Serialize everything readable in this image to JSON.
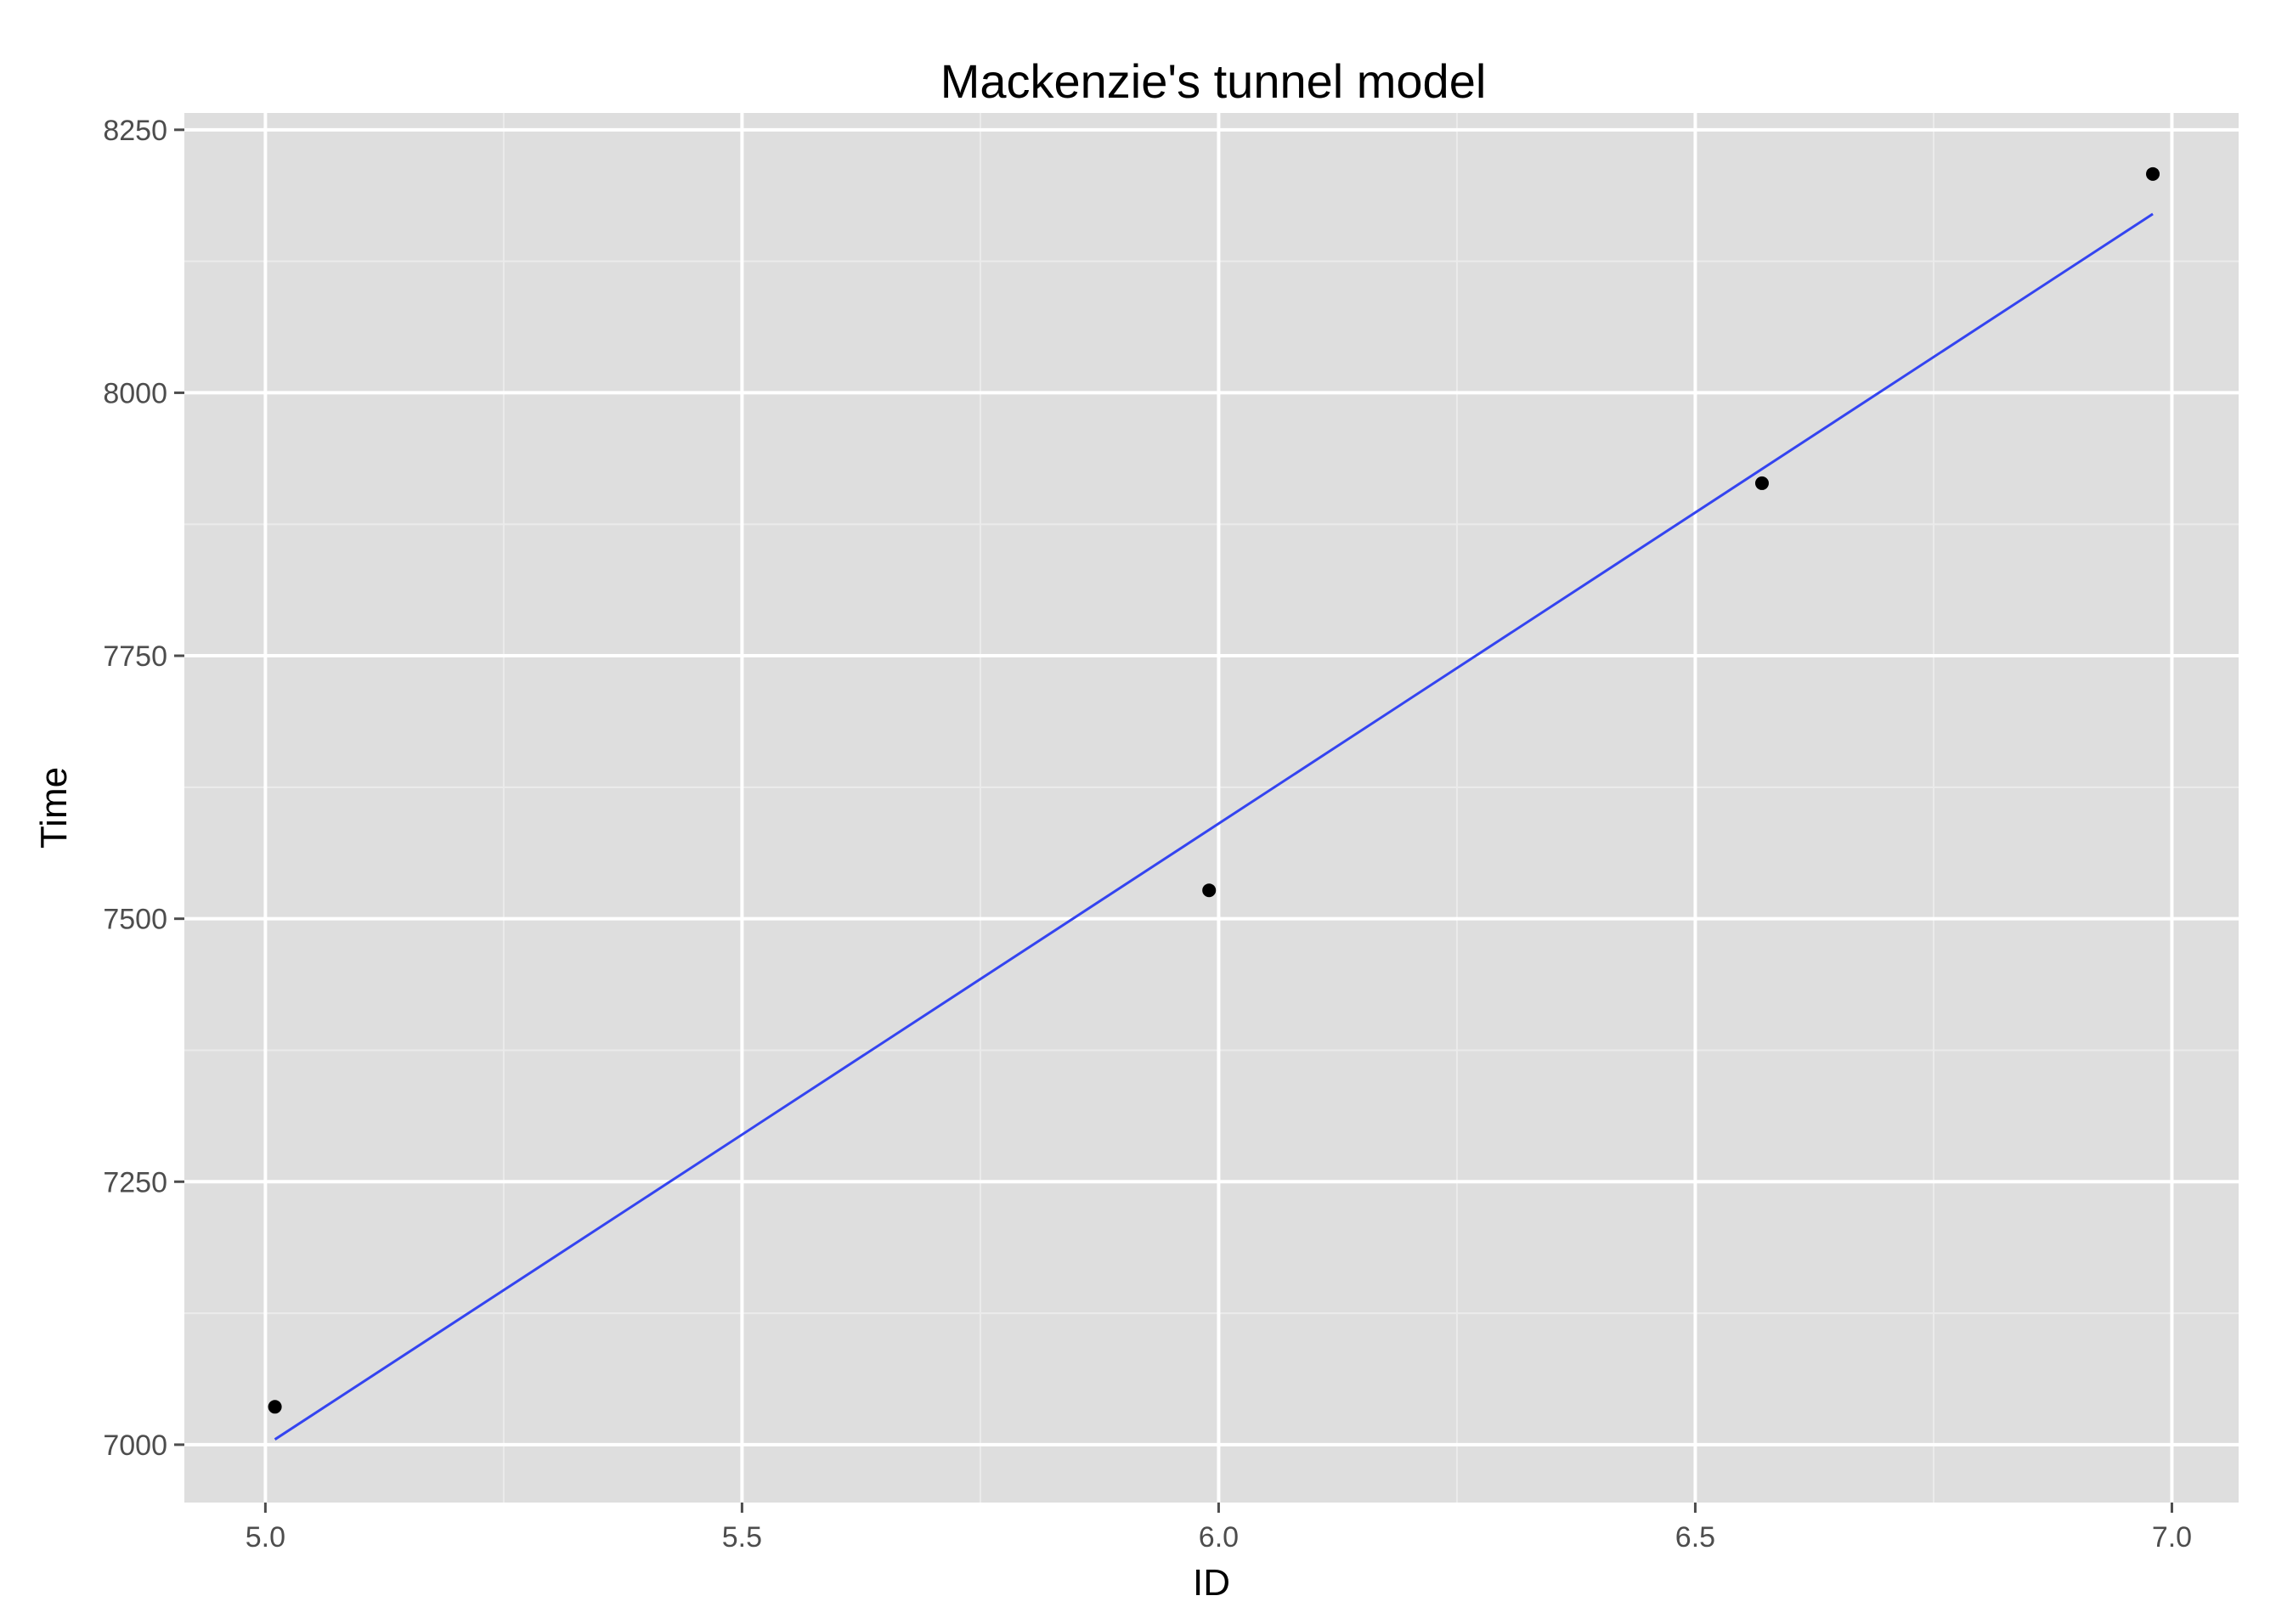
{
  "chart_data": {
    "type": "scatter",
    "title": "Mackenzie's tunnel model",
    "xlabel": "ID",
    "ylabel": "Time",
    "xlim": [
      4.915,
      7.07
    ],
    "ylim": [
      6945,
      8266
    ],
    "x_ticks": [
      5.0,
      5.5,
      6.0,
      6.5,
      7.0
    ],
    "x_tick_labels": [
      "5.0",
      "5.5",
      "6.0",
      "6.5",
      "7.0"
    ],
    "y_ticks": [
      7000,
      7250,
      7500,
      7750,
      8000,
      8250
    ],
    "y_tick_labels": [
      "7000",
      "7250",
      "7500",
      "7750",
      "8000",
      "8250"
    ],
    "grid": true,
    "legend": "none",
    "series": [
      {
        "type": "scatter",
        "x": [
          5.01,
          5.99,
          6.57,
          6.98
        ],
        "y": [
          7036,
          7527,
          7914,
          8208
        ]
      },
      {
        "type": "line",
        "x": [
          5.01,
          6.98
        ],
        "y": [
          7005,
          8170
        ]
      }
    ],
    "colors": {
      "panel": "#dedede",
      "grid_major": "#ffffff",
      "grid_minor": "#ebebeb",
      "points": "#000000",
      "fit_line": "#3444f0"
    }
  }
}
